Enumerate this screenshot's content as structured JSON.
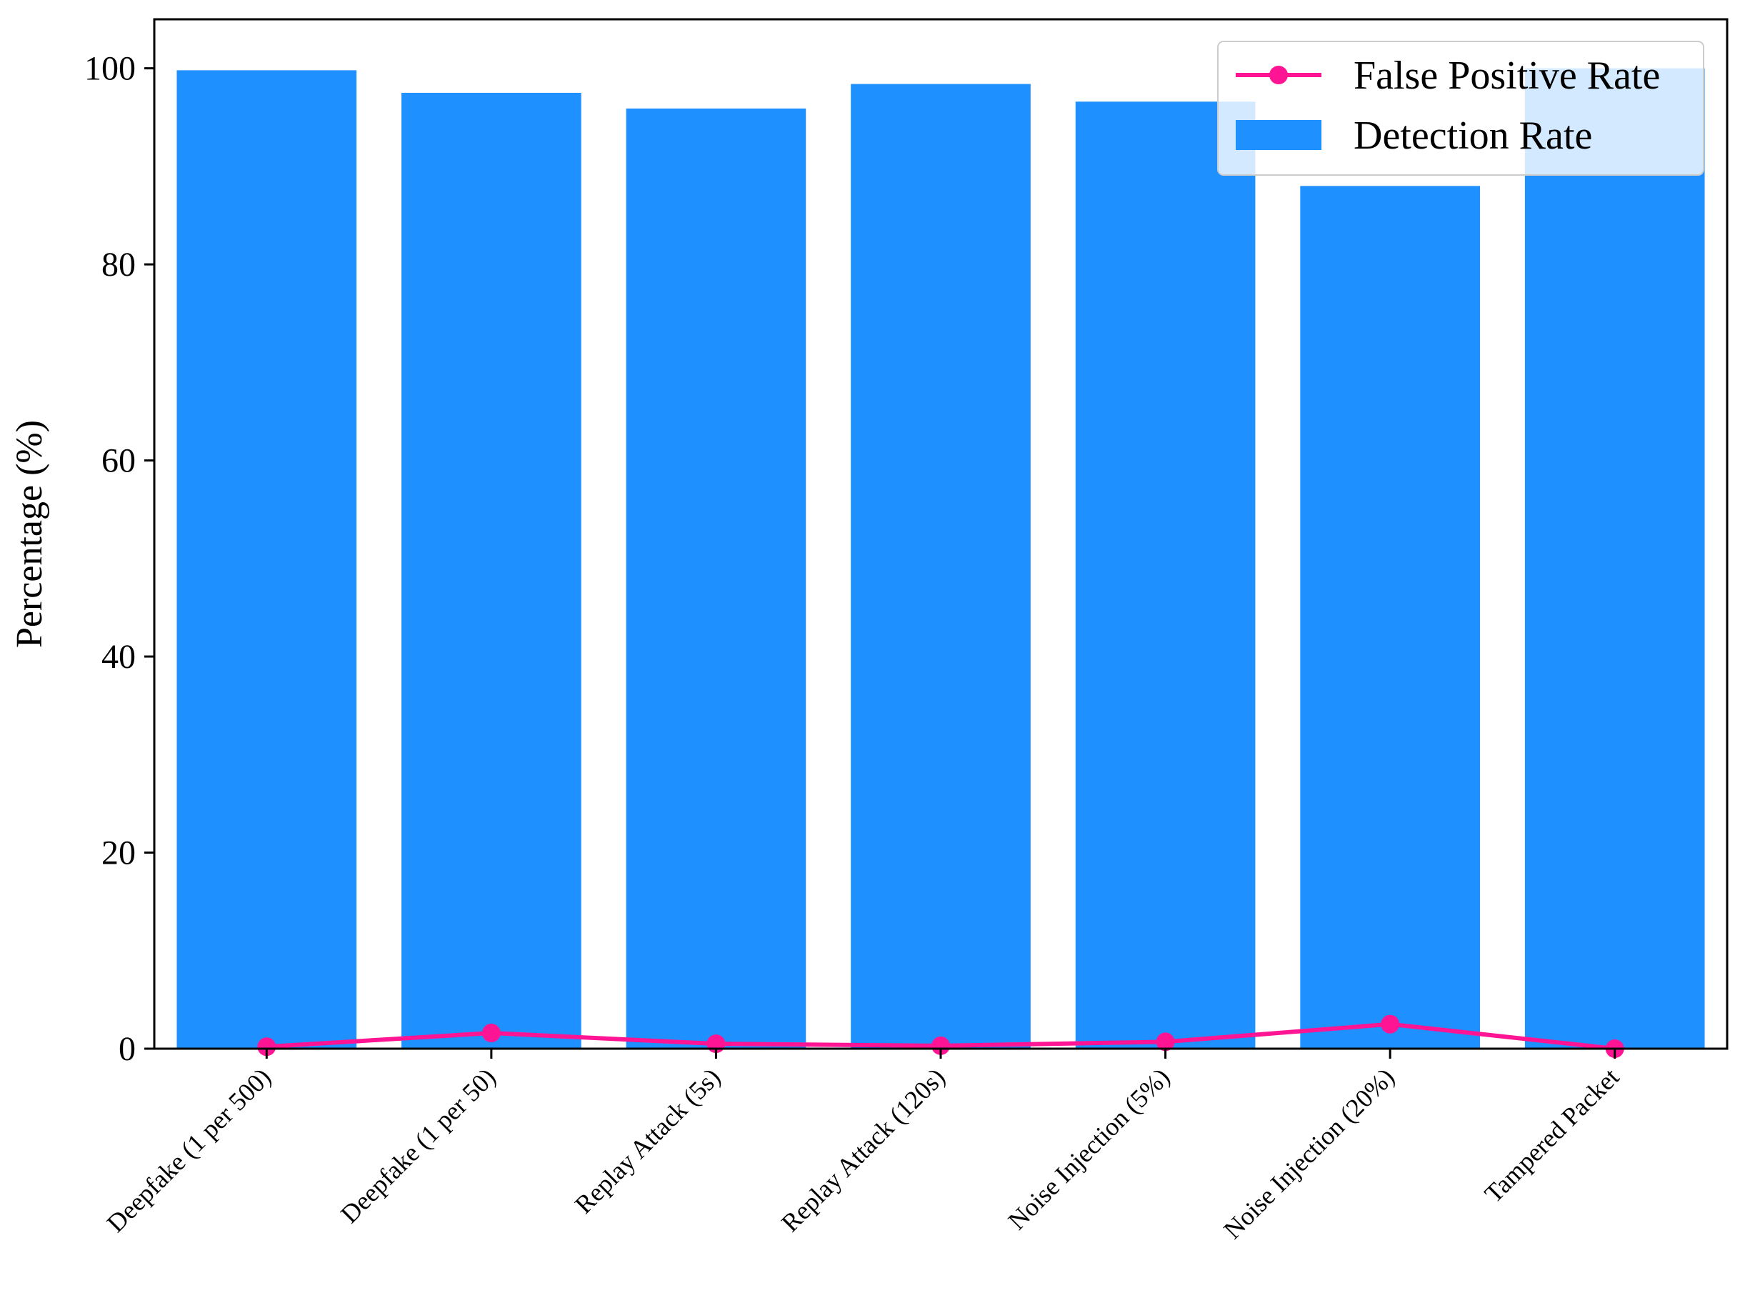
{
  "chart_data": {
    "type": "bar",
    "title": "",
    "xlabel": "",
    "ylabel": "Percentage (%)",
    "ylim": [
      0,
      105
    ],
    "yticks": [
      0,
      20,
      40,
      60,
      80,
      100
    ],
    "grid": false,
    "legend_position": "top-right",
    "categories": [
      "Deepfake (1 per 500)",
      "Deepfake (1 per 50)",
      "Replay Attack (5s)",
      "Replay Attack (120s)",
      "Noise Injection (5%)",
      "Noise Injection (20%)",
      "Tampered Packet"
    ],
    "series": [
      {
        "name": "Detection Rate",
        "kind": "bar",
        "color": "#1e90ff",
        "values": [
          99.8,
          97.5,
          95.9,
          98.4,
          96.6,
          88.0,
          100.0
        ]
      },
      {
        "name": "False Positive Rate",
        "kind": "line",
        "marker": "circle",
        "color": "#ff1493",
        "values": [
          0.2,
          1.6,
          0.5,
          0.3,
          0.7,
          2.5,
          0.0
        ]
      }
    ],
    "legend_order": [
      "False Positive Rate",
      "Detection Rate"
    ]
  }
}
